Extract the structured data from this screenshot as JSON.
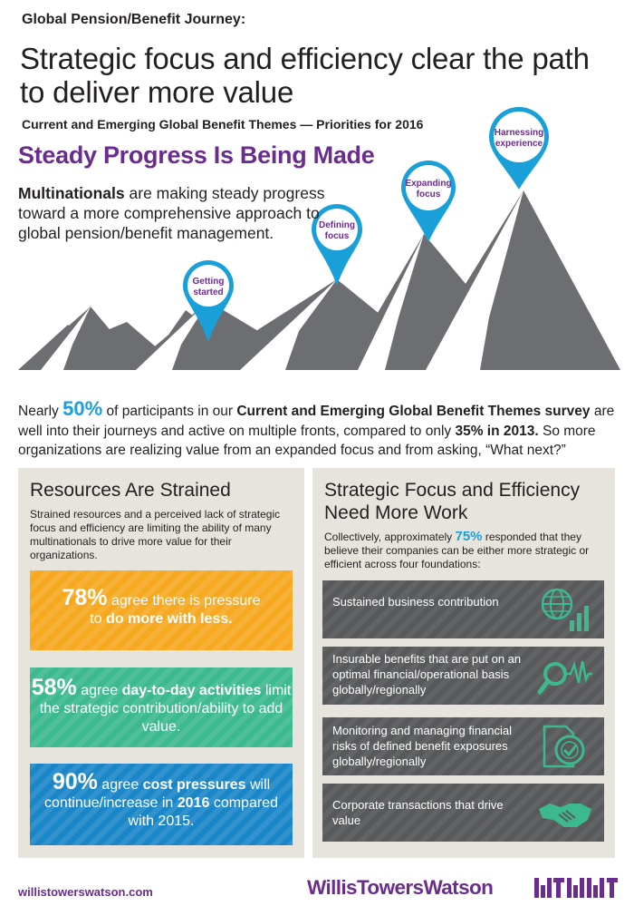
{
  "header": {
    "kicker": "Global Pension/Benefit Journey:",
    "headline": "Strategic focus and efficiency clear the path to deliver more value",
    "subhead": "Current and Emerging Global Benefit Themes — Priorities for 2016"
  },
  "progress": {
    "title": "Steady Progress Is Being Made",
    "intro_bold": "Multinationals",
    "intro_rest": " are making steady progress toward a more comprehensive approach to global pension/benefit management.",
    "pins": [
      {
        "line1": "Getting",
        "line2": "started"
      },
      {
        "line1": "Defining",
        "line2": "focus"
      },
      {
        "line1": "Expanding",
        "line2": "focus"
      },
      {
        "line1": "Harnessing",
        "line2": "experience"
      }
    ]
  },
  "survey": {
    "part1": "Nearly ",
    "pct": "50%",
    "part2": " of participants in our ",
    "survey_name": "Current and Emerging Global Benefit Themes survey",
    "part3": " are well into their journeys and active on multiple fronts, compared to only ",
    "compare": "35% in 2013.",
    "part4": " So more organizations are realizing value from an expanded focus and from asking, “What next?”"
  },
  "resources": {
    "title": "Resources Are Strained",
    "body": "Strained resources and a perceived lack of strategic focus and efficiency are limiting the ability of many multinationals to drive more value for their organizations.",
    "callouts": [
      {
        "pct": "78%",
        "t1": " agree there is pressure",
        "t2": "to ",
        "b1": "do more with less.",
        "t3": ""
      },
      {
        "pct": "58%",
        "t1": " agree ",
        "b1": "day-to-day activities",
        "t2": " limit the strategic contribution/ability to add value."
      },
      {
        "pct": "90%",
        "t1": " agree ",
        "b1": "cost pressures",
        "t2": " will continue/increase in ",
        "b2": "2016",
        "t3": " compared with 2015."
      }
    ]
  },
  "strategic": {
    "title": "Strategic Focus and Efficiency Need More Work",
    "body1": "Collectively, approximately ",
    "pct": "75%",
    "body2": " responded that they believe their companies can be either more strategic or efficient across four foundations:",
    "foundations": [
      {
        "text": "Sustained business contribution",
        "icon": "globe-chart-icon"
      },
      {
        "text": "Insurable benefits that are put on an optimal financial/operational basis globally/regionally",
        "icon": "magnifier-wave-icon"
      },
      {
        "text": "Monitoring and managing financial risks of defined benefit exposures globally/regionally",
        "icon": "document-check-icon"
      },
      {
        "text": "Corporate transactions that drive value",
        "icon": "handshake-icon"
      }
    ]
  },
  "footer": {
    "url": "willistowerswatson.com",
    "logo": "WillisTowersWatson"
  },
  "colors": {
    "purple": "#6a2c8d",
    "blue": "#1aa0d8",
    "orange": "#f6a81f",
    "green": "#3cb98f",
    "darkblue": "#1a86c8",
    "gray": "#58595b",
    "mountain": "#6d6e71"
  }
}
